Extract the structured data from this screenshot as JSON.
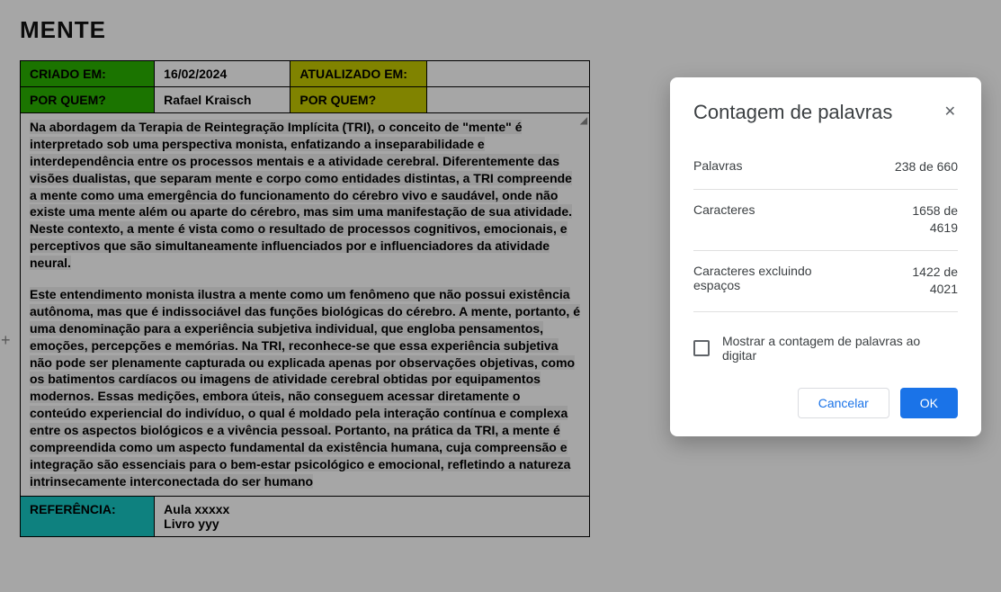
{
  "page": {
    "title": "MENTE"
  },
  "meta": {
    "row1": {
      "label1": "CRIADO EM:",
      "value1": "16/02/2024",
      "label2": "ATUALIZADO EM:",
      "value2": ""
    },
    "row2": {
      "label1": "POR QUEM?",
      "value1": "Rafael Kraisch",
      "label2": "POR QUEM?",
      "value2": ""
    },
    "ref": {
      "label": "REFERÊNCIA:",
      "value": "Aula xxxxx\nLivro yyy"
    }
  },
  "body": {
    "p1": "Na abordagem da Terapia de Reintegração Implícita (TRI), o conceito de \"mente\" é interpretado sob uma perspectiva monista, enfatizando a inseparabilidade e interdependência entre os processos mentais e a atividade cerebral. Diferentemente das visões dualistas, que separam mente e corpo como entidades distintas, a TRI compreende a mente como uma emergência do funcionamento do cérebro vivo e saudável, onde não existe uma mente além ou aparte do cérebro, mas sim uma manifestação de sua atividade. Neste contexto, a mente é vista como o resultado de processos cognitivos, emocionais, e perceptivos que são simultaneamente influenciados por e influenciadores da atividade neural.",
    "p2": "Este entendimento monista ilustra a mente como um fenômeno que não possui existência autônoma, mas que é indissociável das funções biológicas do cérebro. A mente, portanto, é uma denominação para a experiência subjetiva individual, que engloba pensamentos, emoções, percepções e memórias. Na TRI, reconhece-se que essa experiência subjetiva não pode ser plenamente capturada ou explicada apenas por observações objetivas, como os batimentos cardíacos ou imagens de atividade cerebral obtidas por equipamentos modernos. Essas medições, embora úteis, não conseguem acessar diretamente o conteúdo experiencial do indivíduo, o qual é moldado pela interação contínua e complexa entre os aspectos biológicos e a vivência pessoal. Portanto, na prática da TRI, a mente é compreendida como um aspecto fundamental da existência humana, cuja compreensão e integração são essenciais para o bem-estar psicológico e emocional, refletindo a natureza intrinsecamente interconectada do ser humano"
  },
  "dialog": {
    "title": "Contagem de palavras",
    "rows": [
      {
        "label": "Palavras",
        "value": "238 de 660"
      },
      {
        "label": "Caracteres",
        "value": "1658 de\n4619"
      },
      {
        "label": "Caracteres excluindo espaços",
        "value": "1422 de\n4021"
      }
    ],
    "checkbox_label": "Mostrar a contagem de palavras ao digitar",
    "cancel": "Cancelar",
    "ok": "OK"
  },
  "colors": {
    "green": "#2ab200",
    "yellow": "#c5c900",
    "teal": "#16c7c3",
    "dialog_primary": "#1a73e8",
    "text": "#3c4043",
    "border": "#e0e0e0"
  }
}
